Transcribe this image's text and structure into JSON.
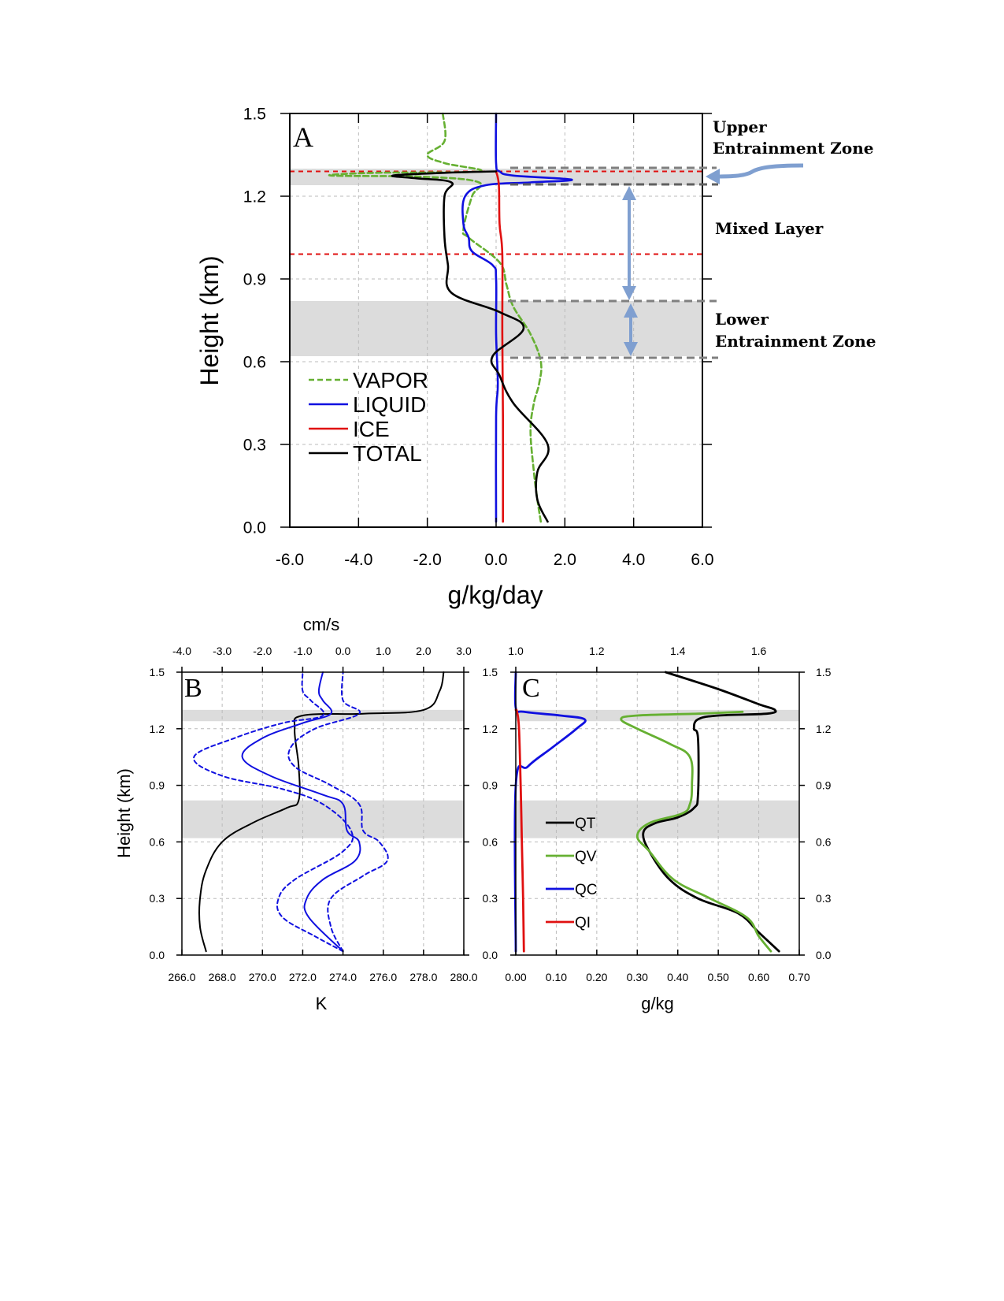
{
  "colors": {
    "vapor": "#66b032",
    "liquid": "#1010e0",
    "ice": "#e01010",
    "total": "#000000",
    "shade": "#dcdcdc",
    "annot_arrow": "#7f9fd0",
    "dashed_grey": "#808080",
    "ref_red": "#e01010"
  },
  "chart_data": [
    {
      "id": "A",
      "type": "line",
      "panel_label": "A",
      "xlabel": "g/kg/day",
      "ylabel": "Height (km)",
      "xlim": [
        -6,
        6
      ],
      "ylim": [
        0,
        1.5
      ],
      "xticks": [
        "-6.0",
        "-4.0",
        "-2.0",
        "0.0",
        "2.0",
        "4.0",
        "6.0"
      ],
      "yticks": [
        "0.0",
        "0.3",
        "0.6",
        "0.9",
        "1.2",
        "1.5"
      ],
      "grid": true,
      "legend_position": "middle-left",
      "shaded_layers": [
        [
          1.24,
          1.3
        ],
        [
          0.62,
          0.82
        ]
      ],
      "reference_lines": [
        1.29,
        0.99
      ],
      "annotations": {
        "upper_line1": "Upper",
        "upper_line2": "Entrainment Zone",
        "mixed": "Mixed Layer",
        "lower_line1": "Lower",
        "lower_line2": "Entrainment Zone"
      },
      "series": [
        {
          "name": "VAPOR",
          "style": "dashed",
          "color": "#66b032",
          "points": [
            [
              1.3,
              0.02
            ],
            [
              1.2,
              0.1
            ],
            [
              1.1,
              0.2
            ],
            [
              1.0,
              0.35
            ],
            [
              1.1,
              0.45
            ],
            [
              1.25,
              0.52
            ],
            [
              1.3,
              0.6
            ],
            [
              1.0,
              0.7
            ],
            [
              0.5,
              0.8
            ],
            [
              0.3,
              0.88
            ],
            [
              0.1,
              0.96
            ],
            [
              -0.8,
              1.05
            ],
            [
              -0.95,
              1.08
            ],
            [
              -0.7,
              1.2
            ],
            [
              -0.5,
              1.25
            ],
            [
              -2,
              1.27
            ],
            [
              -4.8,
              1.275
            ],
            [
              -3.5,
              1.285
            ],
            [
              -0.5,
              1.29
            ],
            [
              -1.5,
              1.32
            ],
            [
              -2,
              1.35
            ],
            [
              -1.5,
              1.4
            ],
            [
              -1.55,
              1.5
            ]
          ]
        },
        {
          "name": "LIQUID",
          "style": "solid",
          "color": "#1010e0",
          "points": [
            [
              0.0,
              0.02
            ],
            [
              0.0,
              0.4
            ],
            [
              0.05,
              0.52
            ],
            [
              0.0,
              0.7
            ],
            [
              0.0,
              0.9
            ],
            [
              -0.1,
              0.95
            ],
            [
              -0.7,
              1.0
            ],
            [
              -0.8,
              1.05
            ],
            [
              -0.95,
              1.1
            ],
            [
              -0.9,
              1.2
            ],
            [
              -0.3,
              1.24
            ],
            [
              1.0,
              1.25
            ],
            [
              2.2,
              1.26
            ],
            [
              0.5,
              1.275
            ],
            [
              0.1,
              1.29
            ],
            [
              0.0,
              1.32
            ],
            [
              0.0,
              1.5
            ]
          ]
        },
        {
          "name": "ICE",
          "style": "solid",
          "color": "#e01010",
          "points": [
            [
              0.2,
              0.02
            ],
            [
              0.2,
              0.4
            ],
            [
              0.18,
              0.7
            ],
            [
              0.18,
              0.99
            ],
            [
              0.1,
              1.1
            ],
            [
              0.08,
              1.24
            ],
            [
              0.0,
              1.29
            ]
          ]
        },
        {
          "name": "TOTAL",
          "style": "solid",
          "color": "#000000",
          "points": [
            [
              1.5,
              0.02
            ],
            [
              1.2,
              0.1
            ],
            [
              1.2,
              0.2
            ],
            [
              1.5,
              0.3
            ],
            [
              0.5,
              0.45
            ],
            [
              0.1,
              0.55
            ],
            [
              -0.1,
              0.62
            ],
            [
              0.8,
              0.72
            ],
            [
              0.1,
              0.78
            ],
            [
              -1.3,
              0.85
            ],
            [
              -1.4,
              0.95
            ],
            [
              -1.5,
              1.05
            ],
            [
              -1.5,
              1.2
            ],
            [
              -1.3,
              1.25
            ],
            [
              -2.3,
              1.265
            ],
            [
              -3.0,
              1.275
            ],
            [
              -1.5,
              1.285
            ],
            [
              0.0,
              1.29
            ]
          ]
        }
      ]
    },
    {
      "id": "B",
      "type": "line",
      "panel_label": "B",
      "xlabel": "K",
      "top_label": "cm/s",
      "ylabel": "Height (km)",
      "xlim": [
        266,
        280
      ],
      "xlim_top": [
        -4,
        3
      ],
      "ylim": [
        0,
        1.5
      ],
      "xticks": [
        "266.0",
        "268.0",
        "270.0",
        "272.0",
        "274.0",
        "276.0",
        "278.0",
        "280.0"
      ],
      "xticks_top": [
        "-4.0",
        "-3.0",
        "-2.0",
        "-1.0",
        "0.0",
        "1.0",
        "2.0",
        "3.0"
      ],
      "yticks": [
        "0.0",
        "0.3",
        "0.6",
        "0.9",
        "1.2",
        "1.5"
      ],
      "grid": true,
      "shaded_layers": [
        [
          1.24,
          1.3
        ],
        [
          0.62,
          0.82
        ]
      ],
      "series": [
        {
          "name": "",
          "axis": "bottom",
          "style": "solid",
          "color": "#000000",
          "points": [
            [
              267.2,
              0.02
            ],
            [
              266.9,
              0.15
            ],
            [
              266.9,
              0.3
            ],
            [
              267.2,
              0.45
            ],
            [
              268.0,
              0.6
            ],
            [
              269.5,
              0.7
            ],
            [
              271.2,
              0.78
            ],
            [
              271.8,
              0.82
            ],
            [
              271.8,
              1.0
            ],
            [
              271.6,
              1.2
            ],
            [
              272.0,
              1.27
            ],
            [
              275.0,
              1.28
            ],
            [
              278.0,
              1.3
            ],
            [
              278.8,
              1.4
            ],
            [
              279.0,
              1.5
            ]
          ]
        },
        {
          "name": "",
          "axis": "top",
          "style": "solid",
          "color": "#1010e0",
          "points": [
            [
              0.0,
              0.02
            ],
            [
              -0.85,
              0.2
            ],
            [
              -0.9,
              0.3
            ],
            [
              -0.5,
              0.4
            ],
            [
              0.3,
              0.5
            ],
            [
              0.4,
              0.6
            ],
            [
              0.1,
              0.66
            ],
            [
              0.0,
              0.8
            ],
            [
              -0.5,
              0.85
            ],
            [
              -1.8,
              0.95
            ],
            [
              -2.5,
              1.05
            ],
            [
              -2.0,
              1.15
            ],
            [
              -1.0,
              1.23
            ],
            [
              -0.3,
              1.28
            ],
            [
              -0.5,
              1.35
            ],
            [
              -0.6,
              1.4
            ],
            [
              -0.5,
              1.5
            ]
          ]
        },
        {
          "name": "",
          "axis": "top",
          "style": "dashed",
          "color": "#1010e0",
          "points": [
            [
              0.0,
              0.02
            ],
            [
              -0.7,
              0.1
            ],
            [
              -1.5,
              0.2
            ],
            [
              -1.6,
              0.3
            ],
            [
              -1.2,
              0.4
            ],
            [
              0.0,
              0.55
            ],
            [
              0.2,
              0.66
            ],
            [
              -0.5,
              0.8
            ],
            [
              -1.5,
              0.88
            ],
            [
              -3.0,
              0.95
            ],
            [
              -3.7,
              1.05
            ],
            [
              -2.7,
              1.15
            ],
            [
              -1.5,
              1.23
            ],
            [
              -0.5,
              1.27
            ],
            [
              -0.8,
              1.35
            ],
            [
              -1.0,
              1.4
            ],
            [
              -1.0,
              1.5
            ]
          ]
        },
        {
          "name": "",
          "axis": "top",
          "style": "dashed",
          "color": "#1010e0",
          "points": [
            [
              0.0,
              0.02
            ],
            [
              -0.3,
              0.15
            ],
            [
              -0.3,
              0.3
            ],
            [
              0.5,
              0.42
            ],
            [
              1.1,
              0.5
            ],
            [
              0.9,
              0.6
            ],
            [
              0.5,
              0.66
            ],
            [
              0.4,
              0.8
            ],
            [
              -0.3,
              0.9
            ],
            [
              -1.2,
              1.0
            ],
            [
              -1.3,
              1.1
            ],
            [
              -0.7,
              1.2
            ],
            [
              0.4,
              1.28
            ],
            [
              0.0,
              1.35
            ],
            [
              0.0,
              1.5
            ]
          ]
        }
      ]
    },
    {
      "id": "C",
      "type": "line",
      "panel_label": "C",
      "xlabel": "g/kg",
      "ylabel": "",
      "xlim": [
        0,
        0.7
      ],
      "xlim_top": [
        1.0,
        1.7
      ],
      "ylim": [
        0,
        1.5
      ],
      "xticks": [
        "0.00",
        "0.10",
        "0.20",
        "0.30",
        "0.40",
        "0.50",
        "0.60",
        "0.70"
      ],
      "xticks_top": [
        "1.0",
        "1.2",
        "1.4",
        "1.6"
      ],
      "yticks": [
        "0.0",
        "0.3",
        "0.6",
        "0.9",
        "1.2",
        "1.5"
      ],
      "grid": true,
      "legend_position": "middle-left",
      "shaded_layers": [
        [
          1.24,
          1.3
        ],
        [
          0.62,
          0.82
        ]
      ],
      "series": [
        {
          "name": "QT",
          "axis": "top",
          "style": "solid",
          "color": "#000000",
          "points": [
            [
              1.65,
              0.02
            ],
            [
              1.6,
              0.12
            ],
            [
              1.55,
              0.22
            ],
            [
              1.45,
              0.3
            ],
            [
              1.38,
              0.4
            ],
            [
              1.33,
              0.55
            ],
            [
              1.315,
              0.65
            ],
            [
              1.345,
              0.7
            ],
            [
              1.4,
              0.73
            ],
            [
              1.44,
              0.78
            ],
            [
              1.45,
              0.85
            ],
            [
              1.45,
              1.15
            ],
            [
              1.44,
              1.2
            ],
            [
              1.45,
              1.25
            ],
            [
              1.5,
              1.27
            ],
            [
              1.62,
              1.28
            ],
            [
              1.64,
              1.3
            ],
            [
              1.6,
              1.33
            ],
            [
              1.5,
              1.41
            ],
            [
              1.37,
              1.5
            ]
          ]
        },
        {
          "name": "QV",
          "axis": "bottom",
          "style": "solid",
          "color": "#66b032",
          "points": [
            [
              0.63,
              0.02
            ],
            [
              0.6,
              0.1
            ],
            [
              0.57,
              0.2
            ],
            [
              0.48,
              0.3
            ],
            [
              0.39,
              0.4
            ],
            [
              0.33,
              0.55
            ],
            [
              0.3,
              0.63
            ],
            [
              0.33,
              0.7
            ],
            [
              0.41,
              0.75
            ],
            [
              0.43,
              0.8
            ],
            [
              0.435,
              0.9
            ],
            [
              0.43,
              1.05
            ],
            [
              0.38,
              1.12
            ],
            [
              0.3,
              1.2
            ],
            [
              0.26,
              1.25
            ],
            [
              0.3,
              1.27
            ],
            [
              0.45,
              1.28
            ],
            [
              0.56,
              1.29
            ]
          ]
        },
        {
          "name": "QC",
          "axis": "bottom",
          "style": "solid",
          "color": "#1010e0",
          "points": [
            [
              0.0,
              0.02
            ],
            [
              0.0,
              0.9
            ],
            [
              0.03,
              1.0
            ],
            [
              0.09,
              1.1
            ],
            [
              0.15,
              1.2
            ],
            [
              0.17,
              1.25
            ],
            [
              0.11,
              1.27
            ],
            [
              0.02,
              1.29
            ],
            [
              0.0,
              1.31
            ],
            [
              0.0,
              1.5
            ]
          ]
        },
        {
          "name": "QI",
          "axis": "bottom",
          "style": "solid",
          "color": "#e01010",
          "points": [
            [
              0.02,
              0.02
            ],
            [
              0.018,
              0.3
            ],
            [
              0.015,
              0.6
            ],
            [
              0.012,
              0.9
            ],
            [
              0.008,
              1.2
            ],
            [
              0.003,
              1.29
            ],
            [
              0.0,
              1.3
            ]
          ]
        }
      ]
    }
  ]
}
